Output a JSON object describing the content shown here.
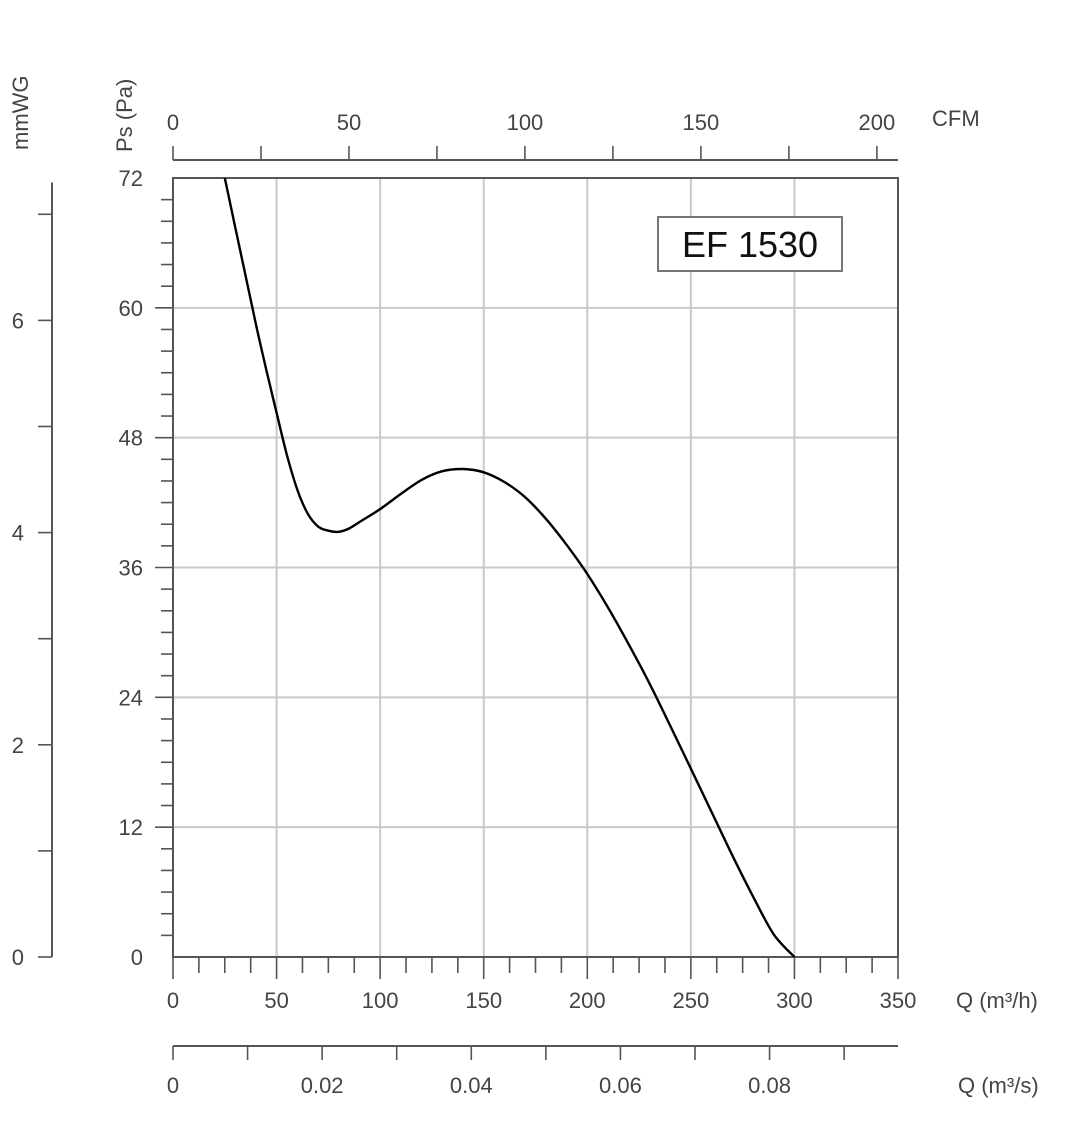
{
  "chart_data": {
    "type": "line",
    "title": "EF 1530",
    "series": [
      {
        "x": [
          25,
          30,
          35,
          40,
          45,
          50,
          55,
          60,
          65,
          70,
          75,
          80,
          85,
          90,
          100,
          110,
          120,
          130,
          140,
          150,
          160,
          170,
          180,
          190,
          200,
          210,
          220,
          230,
          240,
          250,
          260,
          270,
          280,
          290,
          300
        ],
        "y": [
          72,
          67.5,
          63,
          58.5,
          54.3,
          50.3,
          46.4,
          43.2,
          41,
          39.8,
          39.4,
          39.3,
          39.6,
          40.2,
          41.4,
          42.8,
          44.1,
          44.9,
          45.1,
          44.8,
          43.9,
          42.5,
          40.5,
          38.1,
          35.4,
          32.3,
          28.9,
          25.3,
          21.4,
          17.4,
          13.4,
          9.4,
          5.6,
          2.1,
          0
        ]
      }
    ],
    "axes": {
      "left_pa": {
        "label": "Ps (Pa)",
        "ticks": [
          "0",
          "12",
          "24",
          "36",
          "48",
          "60",
          "72"
        ],
        "range": [
          0,
          72
        ]
      },
      "left_mmwg": {
        "label": "mmWG",
        "ticks": [
          "0",
          "2",
          "4",
          "6"
        ]
      },
      "bottom_m3h": {
        "label": "Q (m³/h)",
        "ticks": [
          "0",
          "50",
          "100",
          "150",
          "200",
          "250",
          "300",
          "350"
        ],
        "range": [
          0,
          350
        ]
      },
      "top_cfm": {
        "label": "CFM",
        "ticks": [
          "0",
          "50",
          "100",
          "150",
          "200"
        ]
      },
      "bottom_m3s": {
        "label": "Q (m³/s)",
        "ticks": [
          "0",
          "0.02",
          "0.04",
          "0.06",
          "0.08"
        ]
      }
    },
    "grid": true
  }
}
